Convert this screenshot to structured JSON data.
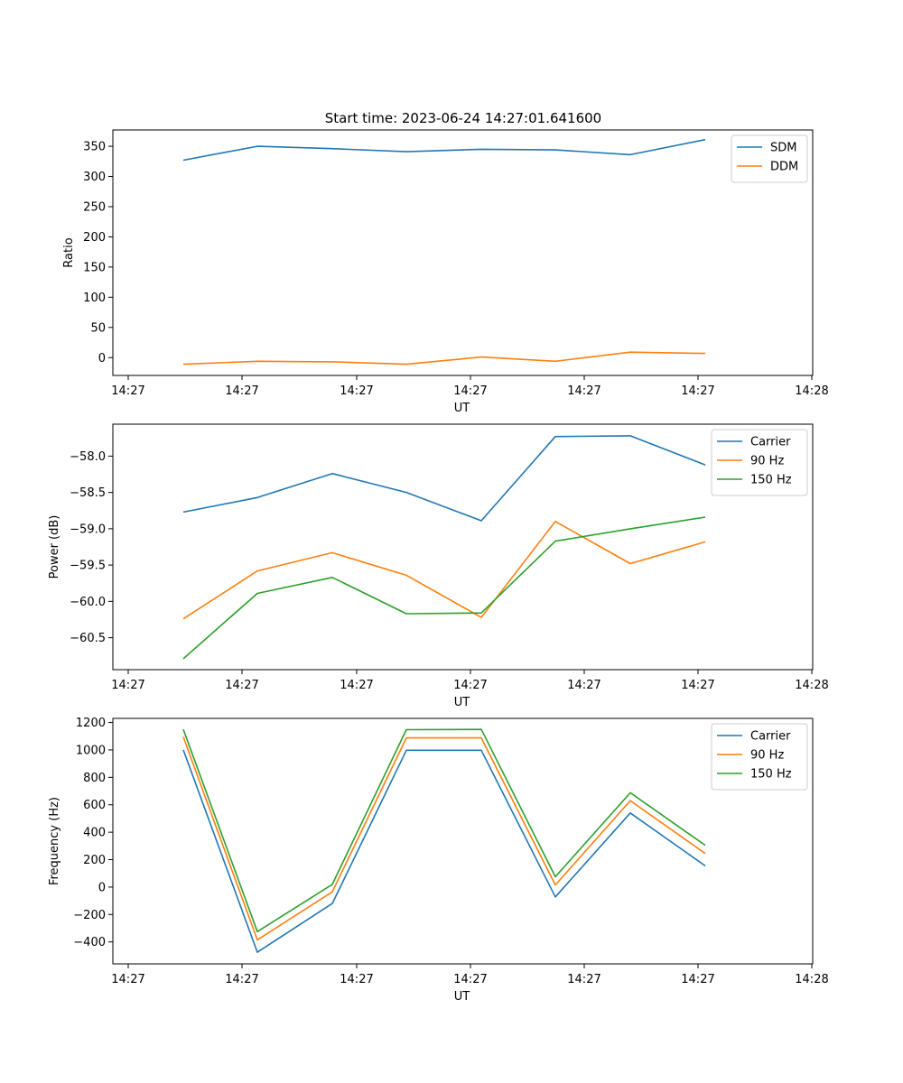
{
  "figure_title": "Start time: 2023-06-24 14:27:01.641600",
  "chart_data": [
    {
      "type": "line",
      "xlabel": "UT",
      "ylabel": "Ratio",
      "x_tick_labels": [
        "14:27",
        "14:27",
        "14:27",
        "14:27",
        "14:27",
        "14:27",
        "14:28"
      ],
      "y_ticks": [
        0,
        50,
        100,
        150,
        200,
        250,
        300,
        350
      ],
      "y_tick_labels": [
        "0",
        "50",
        "100",
        "150",
        "200",
        "250",
        "300",
        "350"
      ],
      "ylim": [
        -29.5,
        377
      ],
      "legend_position": "upper right",
      "series": [
        {
          "name": "SDM",
          "color": "#1f77b4",
          "values": [
            327,
            350,
            346,
            341,
            345,
            344,
            336,
            361
          ]
        },
        {
          "name": "DDM",
          "color": "#ff7f0e",
          "values": [
            -11,
            -6,
            -7,
            -11,
            1,
            -6,
            9,
            7
          ]
        }
      ]
    },
    {
      "type": "line",
      "xlabel": "UT",
      "ylabel": "Power (dB)",
      "x_tick_labels": [
        "14:27",
        "14:27",
        "14:27",
        "14:27",
        "14:27",
        "14:27",
        "14:28"
      ],
      "y_ticks": [
        -60.5,
        -60.0,
        -59.5,
        -59.0,
        -58.5,
        -58.0
      ],
      "y_tick_labels": [
        "−60.5",
        "−60.0",
        "−59.5",
        "−59.0",
        "−58.5",
        "−58.0"
      ],
      "ylim": [
        -60.94,
        -57.56
      ],
      "legend_position": "upper right",
      "series": [
        {
          "name": "Carrier",
          "color": "#1f77b4",
          "values": [
            -58.77,
            -58.57,
            -58.24,
            -58.5,
            -58.89,
            -57.73,
            -57.72,
            -58.12
          ]
        },
        {
          "name": "90 Hz",
          "color": "#ff7f0e",
          "values": [
            -60.24,
            -59.58,
            -59.33,
            -59.64,
            -60.22,
            -58.9,
            -59.48,
            -59.18
          ]
        },
        {
          "name": "150 Hz",
          "color": "#2ca02c",
          "values": [
            -60.79,
            -59.89,
            -59.67,
            -60.17,
            -60.16,
            -59.17,
            -59.0,
            -58.84
          ]
        }
      ]
    },
    {
      "type": "line",
      "xlabel": "UT",
      "ylabel": "Frequency (Hz)",
      "x_tick_labels": [
        "14:27",
        "14:27",
        "14:27",
        "14:27",
        "14:27",
        "14:27",
        "14:28"
      ],
      "y_ticks": [
        -400,
        -200,
        0,
        200,
        400,
        600,
        800,
        1000,
        1200
      ],
      "y_tick_labels": [
        "−400",
        "−200",
        "0",
        "200",
        "400",
        "600",
        "800",
        "1000",
        "1200"
      ],
      "ylim": [
        -560,
        1230
      ],
      "legend_position": "upper right",
      "series": [
        {
          "name": "Carrier",
          "color": "#1f77b4",
          "values": [
            1000,
            -475,
            -120,
            998,
            998,
            -72,
            540,
            155
          ]
        },
        {
          "name": "90 Hz",
          "color": "#ff7f0e",
          "values": [
            1095,
            -385,
            -35,
            1088,
            1088,
            15,
            630,
            245
          ]
        },
        {
          "name": "150 Hz",
          "color": "#2ca02c",
          "values": [
            1150,
            -325,
            20,
            1148,
            1150,
            75,
            688,
            305
          ]
        }
      ]
    }
  ]
}
